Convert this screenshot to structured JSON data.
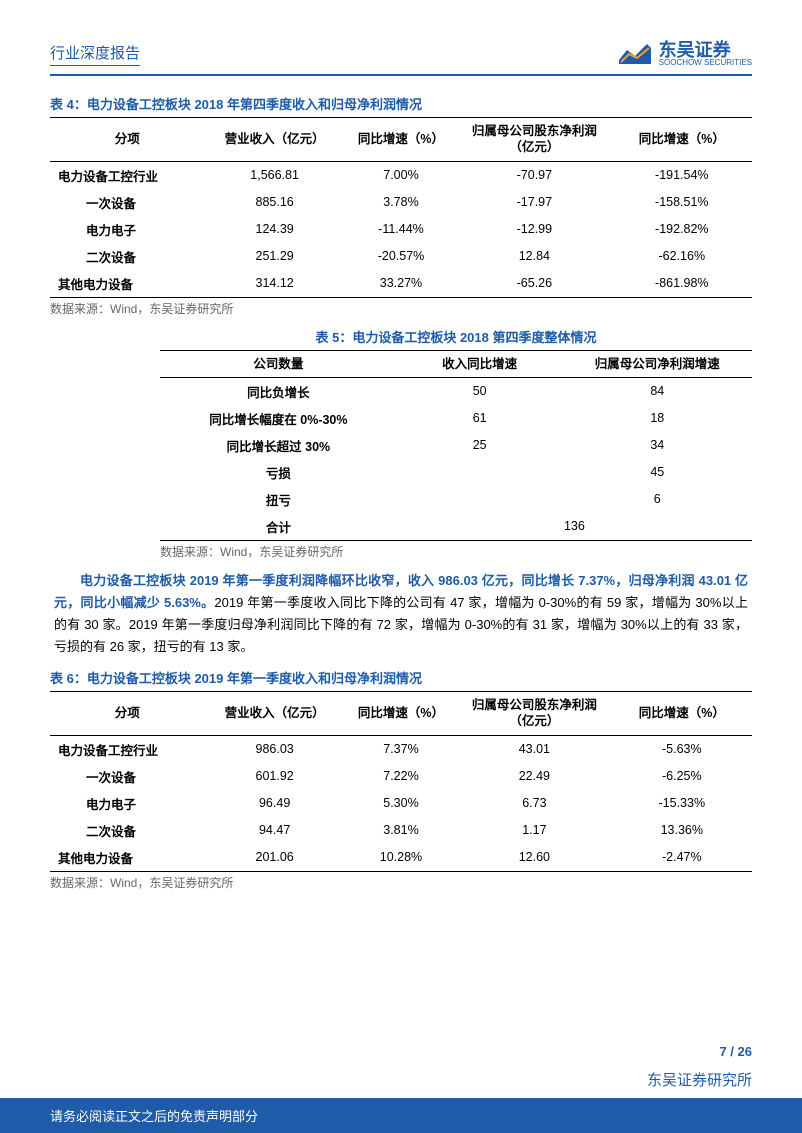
{
  "header": {
    "title": "行业深度报告",
    "logo_cn": "东吴证券",
    "logo_en": "SOOCHOW SECURITIES"
  },
  "table4": {
    "title": "表 4：电力设备工控板块 2018 年第四季度收入和归母净利润情况",
    "columns": [
      "分项",
      "营业收入（亿元）",
      "同比增速（%）",
      "归属母公司股东净利润（亿元）",
      "同比增速（%）"
    ],
    "rows": [
      {
        "label": "电力设备工控行业",
        "indent": false,
        "c1": "1,566.81",
        "c2": "7.00%",
        "c3": "-70.97",
        "c4": "-191.54%"
      },
      {
        "label": "一次设备",
        "indent": true,
        "c1": "885.16",
        "c2": "3.78%",
        "c3": "-17.97",
        "c4": "-158.51%"
      },
      {
        "label": "电力电子",
        "indent": true,
        "c1": "124.39",
        "c2": "-11.44%",
        "c3": "-12.99",
        "c4": "-192.82%"
      },
      {
        "label": "二次设备",
        "indent": true,
        "c1": "251.29",
        "c2": "-20.57%",
        "c3": "12.84",
        "c4": "-62.16%"
      },
      {
        "label": "其他电力设备",
        "indent": false,
        "c1": "314.12",
        "c2": "33.27%",
        "c3": "-65.26",
        "c4": "-861.98%"
      }
    ],
    "source": "数据来源：Wind，东吴证券研究所"
  },
  "table5": {
    "title": "表 5：电力设备工控板块 2018 第四季度整体情况",
    "columns": [
      "公司数量",
      "收入同比增速",
      "归属母公司净利润增速"
    ],
    "rows": [
      {
        "label": "同比负增长",
        "c1": "50",
        "c2": "84"
      },
      {
        "label": "同比增长幅度在 0%-30%",
        "c1": "61",
        "c2": "18"
      },
      {
        "label": "同比增长超过 30%",
        "c1": "25",
        "c2": "34"
      },
      {
        "label": "亏损",
        "c1": "",
        "c2": "45"
      },
      {
        "label": "扭亏",
        "c1": "",
        "c2": "6"
      },
      {
        "label": "合计",
        "merged": "136"
      }
    ],
    "source": "数据来源：Wind，东吴证券研究所"
  },
  "paragraph": {
    "bold": "电力设备工控板块 2019 年第一季度利润降幅环比收窄，收入 986.03 亿元，同比增长 7.37%，归母净利润 43.01 亿元，同比小幅减少 5.63%。",
    "rest": "2019 年第一季度收入同比下降的公司有 47 家，增幅为 0-30%的有 59 家，增幅为 30%以上的有 30 家。2019 年第一季度归母净利润同比下降的有 72 家，增幅为 0-30%的有 31 家，增幅为 30%以上的有 33 家，亏损的有 26 家，扭亏的有 13 家。"
  },
  "table6": {
    "title": "表 6：电力设备工控板块 2019 年第一季度收入和归母净利润情况",
    "columns": [
      "分项",
      "营业收入（亿元）",
      "同比增速（%）",
      "归属母公司股东净利润（亿元）",
      "同比增速（%）"
    ],
    "rows": [
      {
        "label": "电力设备工控行业",
        "indent": false,
        "c1": "986.03",
        "c2": "7.37%",
        "c3": "43.01",
        "c4": "-5.63%"
      },
      {
        "label": "一次设备",
        "indent": true,
        "c1": "601.92",
        "c2": "7.22%",
        "c3": "22.49",
        "c4": "-6.25%"
      },
      {
        "label": "电力电子",
        "indent": true,
        "c1": "96.49",
        "c2": "5.30%",
        "c3": "6.73",
        "c4": "-15.33%"
      },
      {
        "label": "二次设备",
        "indent": true,
        "c1": "94.47",
        "c2": "3.81%",
        "c3": "1.17",
        "c4": "13.36%"
      },
      {
        "label": "其他电力设备",
        "indent": false,
        "c1": "201.06",
        "c2": "10.28%",
        "c3": "12.60",
        "c4": "-2.47%"
      }
    ],
    "source": "数据来源：Wind，东吴证券研究所"
  },
  "footer": {
    "page": "7 / 26",
    "brand": "东吴证券研究所",
    "disclaimer": "请务必阅读正文之后的免责声明部分"
  }
}
